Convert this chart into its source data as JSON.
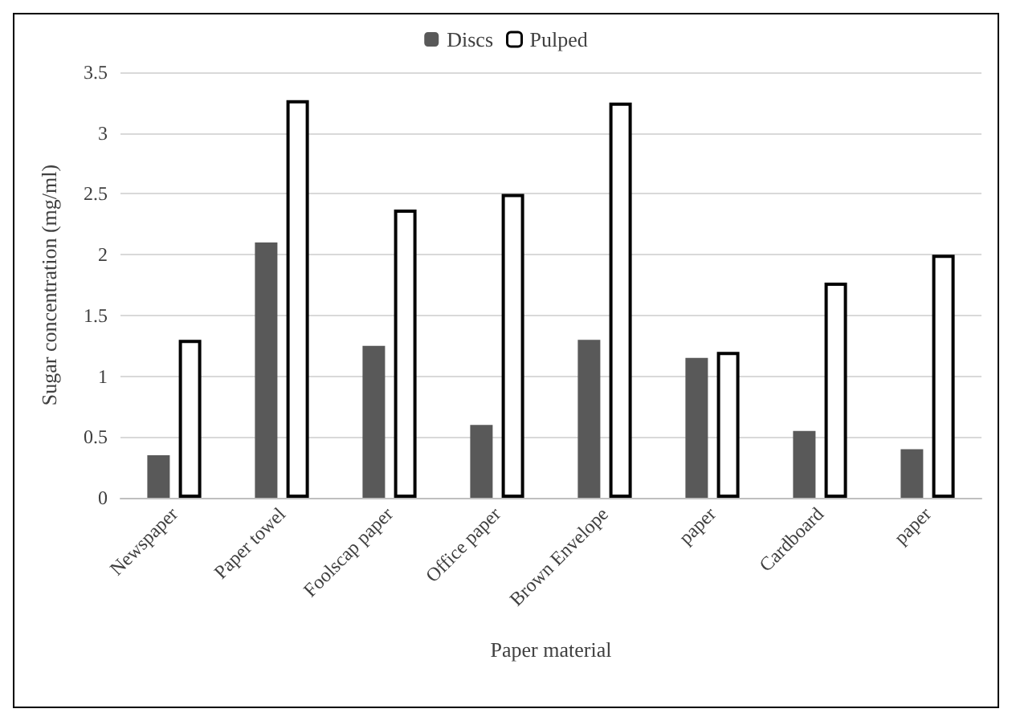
{
  "chart_data": {
    "type": "bar",
    "xlabel": "Paper material",
    "ylabel": "Sugar concentration (mg/ml)",
    "categories": [
      "Newspaper",
      "Paper towel",
      "Foolscap paper",
      "Office paper",
      "Brown Envelope",
      "paper",
      "Cardboard",
      "paper"
    ],
    "series": [
      {
        "name": "Discs",
        "color": "#595959",
        "values": [
          0.35,
          2.1,
          1.25,
          0.6,
          1.3,
          1.15,
          0.55,
          0.4
        ]
      },
      {
        "name": "Pulped",
        "color": "#ffffff",
        "values": [
          1.3,
          3.27,
          2.37,
          2.5,
          3.25,
          1.2,
          1.77,
          2.0
        ]
      }
    ],
    "ylim": [
      0,
      3.5
    ],
    "yticks": [
      0,
      0.5,
      1,
      1.5,
      2,
      2.5,
      3,
      3.5
    ],
    "grid": "y",
    "legend": "top"
  }
}
